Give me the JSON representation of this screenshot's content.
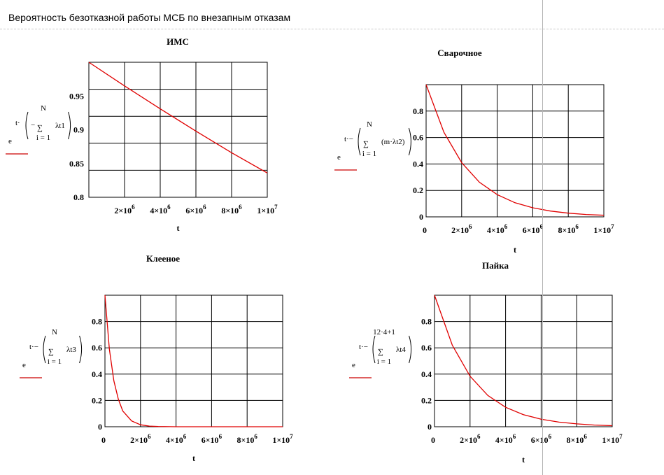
{
  "header": {
    "title": "Вероятность безотказной работы МСБ по внезапным отказам"
  },
  "colors": {
    "curve": "#e00000",
    "grid": "#000000",
    "cursor": "#b4b4b4",
    "underline": "#cc0000"
  },
  "charts": [
    {
      "id": "ims",
      "title": "ИМС",
      "xlabel": "t",
      "ylabel": "e^{t·(−Σ_{i=1}^{N} λt1)}",
      "expr": {
        "pre": "t·",
        "upper": "N",
        "lower": "i = 1",
        "term": "λt1",
        "minus": true
      },
      "yticks": [
        "0.8",
        "0.85",
        "0.9",
        "0.95"
      ],
      "xticks": [
        "2×10^6",
        "4×10^6",
        "6×10^6",
        "8×10^6",
        "1×10^7"
      ]
    },
    {
      "id": "svarochnoe",
      "title": "Сварочное",
      "xlabel": "t",
      "ylabel": "e^{t·−[Σ_{i=1}^{N} (m·λt2)]}",
      "expr": {
        "pre": "t·−",
        "upper": "N",
        "lower": "i = 1",
        "term": "(m·λt2)"
      },
      "yticks": [
        "0",
        "0.2",
        "0.4",
        "0.6",
        "0.8"
      ],
      "xticks": [
        "0",
        "2×10^6",
        "4×10^6",
        "6×10^6",
        "8×10^6",
        "1×10^7"
      ]
    },
    {
      "id": "kleenoe",
      "title": "Клееное",
      "xlabel": "t",
      "ylabel": "e^{t·−(Σ_{i=1}^{N} λt3)}",
      "expr": {
        "pre": "t·−",
        "upper": "N",
        "lower": "i = 1",
        "term": "λt3"
      },
      "yticks": [
        "0",
        "0.2",
        "0.4",
        "0.6",
        "0.8"
      ],
      "xticks": [
        "0",
        "2×10^6",
        "4×10^6",
        "6×10^6",
        "8×10^6",
        "1×10^7"
      ]
    },
    {
      "id": "payka",
      "title": "Пайка",
      "xlabel": "t",
      "ylabel": "e^{t·−(Σ_{i=1}^{12·4+1} λt4)}",
      "expr": {
        "pre": "t·−",
        "upper": "12·4+1",
        "lower": "i = 1",
        "term": "λt4"
      },
      "yticks": [
        "0",
        "0.2",
        "0.4",
        "0.6",
        "0.8"
      ],
      "xticks": [
        "0",
        "2×10^6",
        "4×10^6",
        "6×10^6",
        "8×10^6",
        "1×10^7"
      ]
    }
  ],
  "chart_data": [
    {
      "type": "line",
      "title": "ИМС",
      "xlabel": "t",
      "ylabel": "e^{t·(−Σ_{i=1}^{N} λt1)}",
      "xlim": [
        0,
        10000000
      ],
      "ylim": [
        0.8,
        1.0
      ],
      "xticks": [
        2000000,
        4000000,
        6000000,
        8000000,
        10000000
      ],
      "yticks": [
        0.8,
        0.85,
        0.9,
        0.95
      ],
      "grid": true,
      "series": [
        {
          "x": [
            0,
            2000000,
            4000000,
            6000000,
            8000000,
            10000000
          ],
          "y": [
            1.0,
            0.965,
            0.931,
            0.898,
            0.866,
            0.836
          ]
        }
      ]
    },
    {
      "type": "line",
      "title": "Сварочное",
      "xlabel": "t",
      "ylabel": "e^{t·−[Σ_{i=1}^{N} (m·λt2)]}",
      "xlim": [
        0,
        10000000
      ],
      "ylim": [
        0,
        1.0
      ],
      "xticks": [
        0,
        2000000,
        4000000,
        6000000,
        8000000,
        10000000
      ],
      "yticks": [
        0,
        0.2,
        0.4,
        0.6,
        0.8
      ],
      "grid": true,
      "series": [
        {
          "x": [
            0,
            1000000,
            2000000,
            3000000,
            4000000,
            5000000,
            6000000,
            7000000,
            8000000,
            9000000,
            10000000
          ],
          "y": [
            1.0,
            0.64,
            0.41,
            0.262,
            0.168,
            0.107,
            0.069,
            0.044,
            0.028,
            0.018,
            0.012
          ]
        }
      ]
    },
    {
      "type": "line",
      "title": "Клееное",
      "xlabel": "t",
      "ylabel": "e^{t·−(Σ_{i=1}^{N} λt3)}",
      "xlim": [
        0,
        10000000
      ],
      "ylim": [
        0,
        1.0
      ],
      "xticks": [
        0,
        2000000,
        4000000,
        6000000,
        8000000,
        10000000
      ],
      "yticks": [
        0,
        0.2,
        0.4,
        0.6,
        0.8
      ],
      "grid": true,
      "series": [
        {
          "x": [
            0,
            250000,
            500000,
            750000,
            1000000,
            1500000,
            2000000,
            2500000,
            3000000,
            4000000,
            6000000,
            8000000,
            10000000
          ],
          "y": [
            1.0,
            0.59,
            0.35,
            0.21,
            0.12,
            0.044,
            0.015,
            0.005,
            0.002,
            0.0,
            0.0,
            0.0,
            0.0
          ]
        }
      ]
    },
    {
      "type": "line",
      "title": "Пайка",
      "xlabel": "t",
      "ylabel": "e^{t·−(Σ_{i=1}^{12·4+1} λt4)}",
      "xlim": [
        0,
        10000000
      ],
      "ylim": [
        0,
        1.0
      ],
      "xticks": [
        0,
        2000000,
        4000000,
        6000000,
        8000000,
        10000000
      ],
      "yticks": [
        0,
        0.2,
        0.4,
        0.6,
        0.8
      ],
      "grid": true,
      "series": [
        {
          "x": [
            0,
            1000000,
            2000000,
            3000000,
            4000000,
            5000000,
            6000000,
            7000000,
            8000000,
            9000000,
            10000000
          ],
          "y": [
            1.0,
            0.62,
            0.384,
            0.238,
            0.148,
            0.092,
            0.057,
            0.035,
            0.022,
            0.013,
            0.008
          ]
        }
      ]
    }
  ]
}
